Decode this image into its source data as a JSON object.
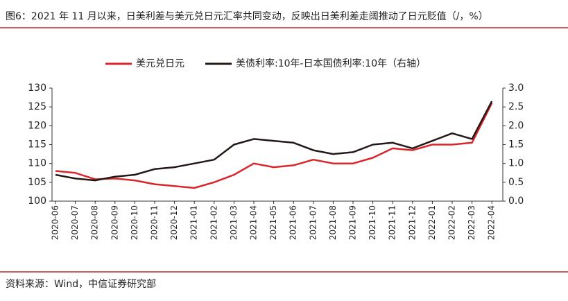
{
  "chart_data": {
    "type": "line",
    "title": "图6：2021 年 11 月以来，日美利差与美元兑日元汇率共同变动，反映出日美利差走阔推动了日元贬值（/，%）",
    "source": "资料来源：Wind，中信证券研究部",
    "categories": [
      "2020-06",
      "2020-07",
      "2020-08",
      "2020-09",
      "2020-10",
      "2020-11",
      "2020-12",
      "2021-01",
      "2021-02",
      "2021-03",
      "2021-04",
      "2021-05",
      "2021-06",
      "2021-07",
      "2021-08",
      "2021-09",
      "2021-10",
      "2021-11",
      "2021-12",
      "2022-01",
      "2022-02",
      "2022-03",
      "2022-04"
    ],
    "series": [
      {
        "name": "美元兑日元",
        "color": "#d9262b",
        "values": [
          108,
          107.5,
          105.8,
          106,
          105.5,
          104.5,
          104,
          103.5,
          105,
          107,
          110,
          109,
          109.5,
          111,
          110,
          110,
          111.5,
          114,
          113.5,
          115,
          115,
          115.5,
          126
        ]
      },
      {
        "name": "美债利率:10年-日本国债利率:10年（右轴）",
        "color": "#231815",
        "axis": "y2",
        "values": [
          0.7,
          0.6,
          0.55,
          0.65,
          0.7,
          0.85,
          0.9,
          1.0,
          1.1,
          1.5,
          1.65,
          1.6,
          1.55,
          1.35,
          1.25,
          1.3,
          1.5,
          1.55,
          1.4,
          1.6,
          1.8,
          1.65,
          2.65
        ]
      }
    ],
    "ylim": [
      100,
      130
    ],
    "yticks": [
      100,
      105,
      110,
      115,
      120,
      125,
      130
    ],
    "y2lim": [
      0,
      3
    ],
    "y2ticks": [
      {
        "value": 0,
        "label": "0.0"
      },
      0.5,
      {
        "value": 1,
        "label": "1.0"
      },
      1.5,
      {
        "value": 2,
        "label": "2.0"
      },
      2.5,
      {
        "value": 3,
        "label": "3.0"
      }
    ]
  }
}
